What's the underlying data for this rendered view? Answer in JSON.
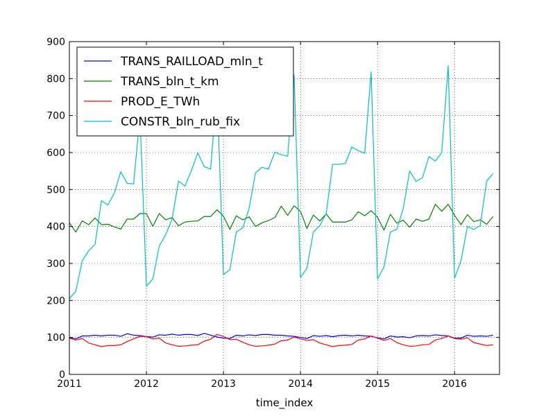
{
  "chart_data": {
    "type": "line",
    "xlabel": "time_index",
    "ylabel": "",
    "xlim": [
      2011.0,
      2016.583
    ],
    "ylim": [
      0,
      900
    ],
    "x_ticks": [
      2011,
      2012,
      2013,
      2014,
      2015,
      2016
    ],
    "x_tick_labels": [
      "2011",
      "2012",
      "2013",
      "2014",
      "2015",
      "2016"
    ],
    "y_ticks": [
      0,
      100,
      200,
      300,
      400,
      500,
      600,
      700,
      800,
      900
    ],
    "y_tick_labels": [
      "0",
      "100",
      "200",
      "300",
      "400",
      "500",
      "600",
      "700",
      "800",
      "900"
    ],
    "grid": true,
    "legend_position": "top-left",
    "x": [
      "2011-01",
      "2011-02",
      "2011-03",
      "2011-04",
      "2011-05",
      "2011-06",
      "2011-07",
      "2011-08",
      "2011-09",
      "2011-10",
      "2011-11",
      "2011-12",
      "2012-01",
      "2012-02",
      "2012-03",
      "2012-04",
      "2012-05",
      "2012-06",
      "2012-07",
      "2012-08",
      "2012-09",
      "2012-10",
      "2012-11",
      "2012-12",
      "2013-01",
      "2013-02",
      "2013-03",
      "2013-04",
      "2013-05",
      "2013-06",
      "2013-07",
      "2013-08",
      "2013-09",
      "2013-10",
      "2013-11",
      "2013-12",
      "2014-01",
      "2014-02",
      "2014-03",
      "2014-04",
      "2014-05",
      "2014-06",
      "2014-07",
      "2014-08",
      "2014-09",
      "2014-10",
      "2014-11",
      "2014-12",
      "2015-01",
      "2015-02",
      "2015-03",
      "2015-04",
      "2015-05",
      "2015-06",
      "2015-07",
      "2015-08",
      "2015-09",
      "2015-10",
      "2015-11",
      "2015-12",
      "2016-01",
      "2016-02",
      "2016-03",
      "2016-04",
      "2016-05",
      "2016-06",
      "2016-07"
    ],
    "series": [
      {
        "name": "TRANS_RAILLOAD_mln_t",
        "color": "#0000ff",
        "values": [
          100,
          96,
          104,
          104,
          106,
          104,
          106,
          106,
          103,
          110,
          106,
          105,
          102,
          101,
          107,
          106,
          109,
          106,
          108,
          108,
          105,
          111,
          106,
          101,
          98,
          97,
          106,
          104,
          107,
          105,
          108,
          108,
          106,
          106,
          104,
          103,
          100,
          97,
          105,
          103,
          105,
          102,
          105,
          106,
          104,
          106,
          104,
          103,
          99,
          96,
          104,
          101,
          102,
          99,
          104,
          105,
          104,
          107,
          105,
          104,
          98,
          98,
          106,
          103,
          104,
          103,
          106
        ]
      },
      {
        "name": "TRANS_bln_t_km",
        "color": "#008000",
        "values": [
          410,
          385,
          415,
          405,
          423,
          405,
          406,
          399,
          393,
          420,
          420,
          435,
          435,
          400,
          435,
          418,
          424,
          402,
          412,
          414,
          415,
          427,
          427,
          445,
          428,
          392,
          429,
          418,
          426,
          400,
          410,
          416,
          424,
          455,
          430,
          456,
          441,
          395,
          431,
          415,
          434,
          412,
          412,
          412,
          418,
          440,
          429,
          443,
          425,
          390,
          433,
          409,
          417,
          398,
          420,
          414,
          420,
          460,
          441,
          460,
          430,
          405,
          432,
          413,
          418,
          406,
          427
        ]
      },
      {
        "name": "PROD_E_TWh",
        "color": "#ff0000",
        "values": [
          98,
          93,
          97,
          85,
          80,
          75,
          78,
          78,
          80,
          89,
          96,
          103,
          102,
          96,
          98,
          85,
          80,
          76,
          77,
          79,
          80,
          90,
          95,
          108,
          103,
          94,
          95,
          87,
          80,
          76,
          77,
          79,
          82,
          91,
          93,
          101,
          96,
          92,
          94,
          85,
          80,
          75,
          78,
          79,
          81,
          93,
          96,
          104,
          98,
          92,
          97,
          86,
          80,
          76,
          77,
          80,
          81,
          93,
          97,
          104,
          97,
          95,
          99,
          86,
          82,
          78,
          80
        ]
      },
      {
        "name": "CONSTR_bln_rub_fix",
        "color": "#00bfbf",
        "values": [
          205,
          225,
          307,
          334,
          352,
          470,
          458,
          490,
          548,
          517,
          515,
          700,
          238,
          258,
          347,
          378,
          420,
          523,
          509,
          551,
          599,
          562,
          555,
          770,
          270,
          283,
          385,
          396,
          449,
          545,
          560,
          555,
          601,
          594,
          590,
          810,
          262,
          287,
          385,
          402,
          435,
          568,
          568,
          571,
          615,
          605,
          598,
          818,
          258,
          290,
          385,
          393,
          448,
          550,
          522,
          532,
          589,
          577,
          600,
          835,
          260,
          307,
          400,
          392,
          403,
          523,
          543
        ]
      }
    ]
  }
}
